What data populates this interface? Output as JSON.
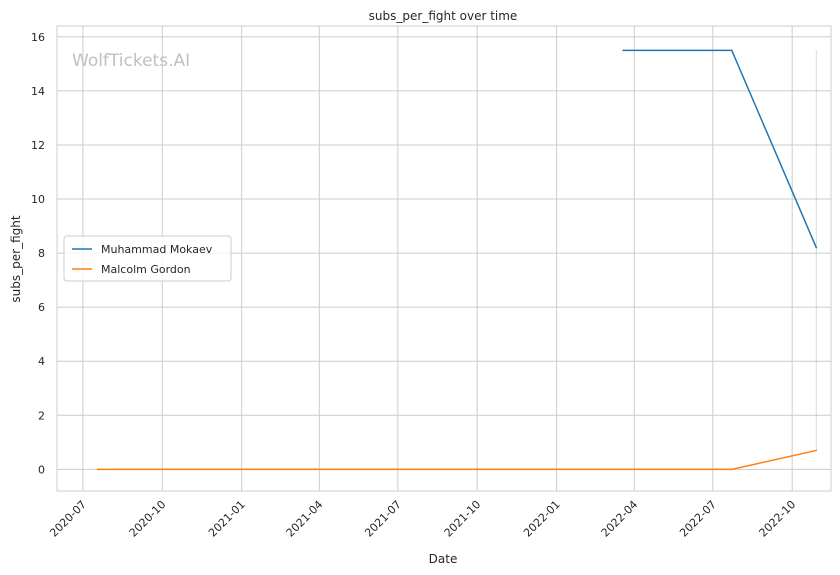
{
  "watermark": "WolfTickets.AI",
  "chart_data": {
    "type": "line",
    "title": "subs_per_fight over time",
    "xlabel": "Date",
    "ylabel": "subs_per_fight",
    "x_ticks": [
      "2020-07",
      "2020-10",
      "2021-01",
      "2021-04",
      "2021-07",
      "2021-10",
      "2022-01",
      "2022-04",
      "2022-07",
      "2022-10"
    ],
    "y_ticks": [
      0,
      2,
      4,
      6,
      8,
      10,
      12,
      14,
      16
    ],
    "ylim": [
      -0.8,
      16.4
    ],
    "xlim": [
      "2020-06-01",
      "2022-11-15"
    ],
    "grid": true,
    "legend_position": "center-left",
    "series": [
      {
        "name": "Muhammad Mokaev",
        "color": "#1f77b4",
        "points": [
          {
            "x": "2022-03-19",
            "y": 15.5
          },
          {
            "x": "2022-07-23",
            "y": 15.5
          },
          {
            "x": "2022-10-29",
            "y": 8.2
          }
        ]
      },
      {
        "name": "Malcolm Gordon",
        "color": "#ff7f0e",
        "points": [
          {
            "x": "2020-07-18",
            "y": 0
          },
          {
            "x": "2022-07-23",
            "y": 0
          },
          {
            "x": "2022-10-29",
            "y": 0.7
          }
        ]
      }
    ],
    "band": {
      "color": "#2ca02c",
      "x": "2022-10-29",
      "y_range": [
        0.7,
        15.5
      ]
    }
  }
}
